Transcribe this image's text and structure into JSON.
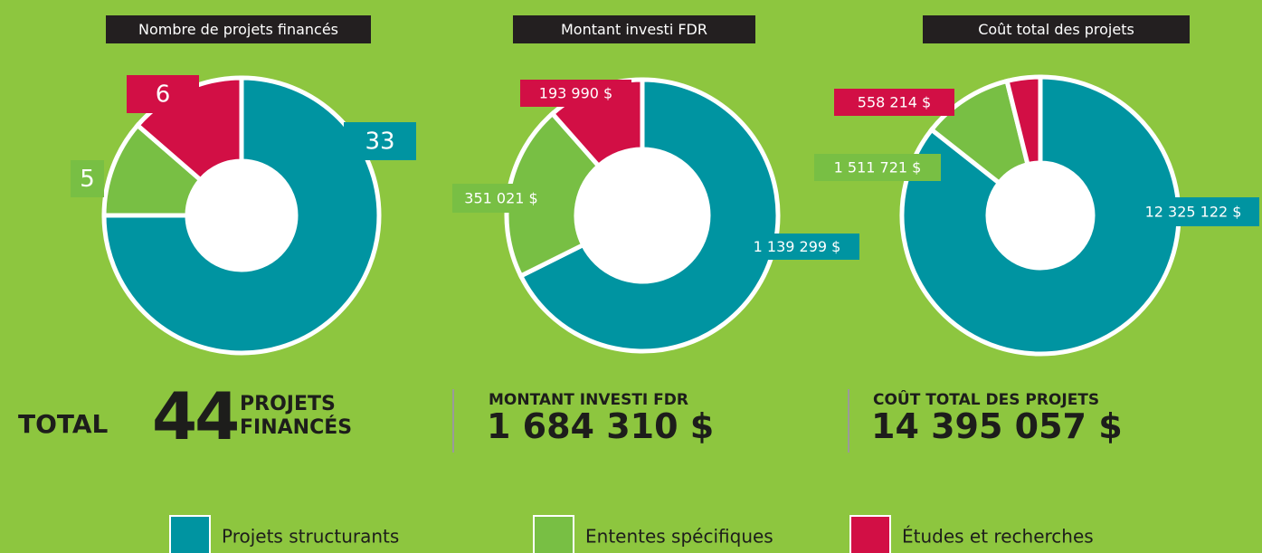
{
  "chart_data": [
    {
      "type": "pie",
      "title": "Nombre de projets financés",
      "values": [
        33,
        5,
        6
      ]
    },
    {
      "type": "pie",
      "title": "Montant investi FDR",
      "values": [
        1139299,
        351021,
        193990
      ],
      "value_labels": [
        "1 139 299 $",
        "351 021 $",
        "193 990 $"
      ]
    },
    {
      "type": "pie",
      "title": "Coût total des projets",
      "values": [
        12325122,
        1511721,
        558214
      ],
      "value_labels": [
        "12 325 122 $",
        "1 511 721 $",
        "558 214 $"
      ]
    }
  ],
  "legend": [
    {
      "name": "Projets structurants",
      "color": "#0094a1"
    },
    {
      "name": "Ententes spécifiques",
      "color": "#78bf44"
    },
    {
      "name": "Études et recherches",
      "color": "#d20f45"
    }
  ],
  "summary": {
    "prefix": "TOTAL",
    "items": [
      {
        "value": 44,
        "caption": "PROJETS FINANCÉS"
      },
      {
        "caption": "MONTANT INVESTI FDR",
        "value": 1684310,
        "value_label": "1 684 310 $"
      },
      {
        "caption": "COÛT TOTAL DES PROJETS",
        "value": 14395057,
        "value_label": "14 395 057 $"
      }
    ]
  }
}
